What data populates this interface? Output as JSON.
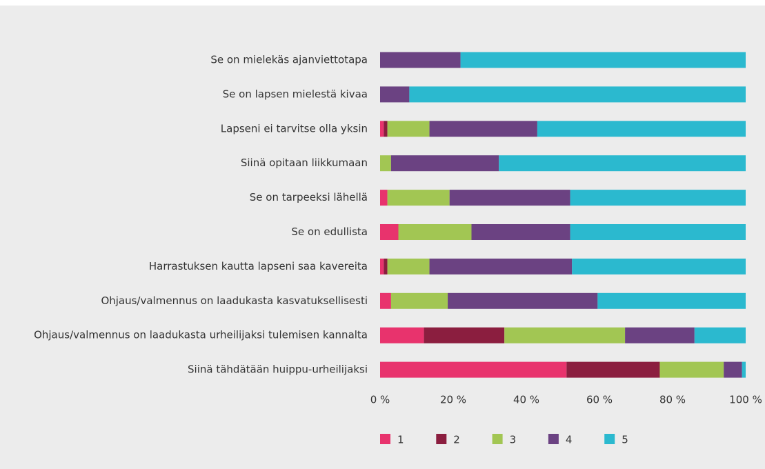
{
  "chart_data": {
    "type": "stacked_barh",
    "categories": [
      "Se on mielekäs ajanviettotapa",
      "Se on lapsen mielestä kivaa",
      "Lapseni ei tarvitse olla yksin",
      "Siinä opitaan liikkumaan",
      "Se on tarpeeksi lähellä",
      "Se on edullista",
      "Harrastuksen kautta lapseni saa kavereita",
      "Ohjaus/valmennus on laadukasta kasvatuksellisesti",
      "Ohjaus/valmennus on laadukasta urheilijaksi tulemisen kannalta",
      "Siinä tähdätään huippu-urheilijaksi"
    ],
    "series": [
      {
        "name": "1",
        "color": "#e8336d",
        "values": [
          0,
          0,
          1,
          0,
          2,
          5,
          1,
          3,
          12,
          51
        ]
      },
      {
        "name": "2",
        "color": "#8b1e3f",
        "values": [
          0,
          0,
          1,
          0,
          0,
          0,
          1,
          0,
          22,
          25.5
        ]
      },
      {
        "name": "3",
        "color": "#a2c653",
        "values": [
          0,
          0,
          11.5,
          3,
          17,
          20,
          11.5,
          15.5,
          33,
          17.5
        ]
      },
      {
        "name": "4",
        "color": "#6b4282",
        "values": [
          22,
          8,
          29.5,
          29.5,
          33,
          27,
          39,
          41,
          19,
          5
        ]
      },
      {
        "name": "5",
        "color": "#2bb9cf",
        "values": [
          78,
          92,
          57,
          67.5,
          48,
          48,
          47.5,
          40.5,
          14,
          1
        ]
      }
    ],
    "xlim": [
      0,
      100
    ],
    "xticks": [
      {
        "value": 0,
        "label": "0 %"
      },
      {
        "value": 20,
        "label": "20 %"
      },
      {
        "value": 40,
        "label": "40 %"
      },
      {
        "value": 60,
        "label": "60 %"
      },
      {
        "value": 80,
        "label": "80 %"
      },
      {
        "value": 100,
        "label": "100 %"
      }
    ],
    "legend": "bottom"
  }
}
